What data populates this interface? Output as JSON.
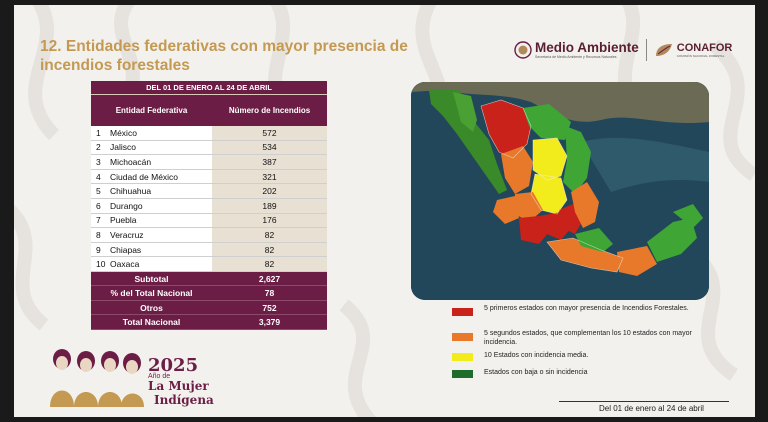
{
  "slide": {
    "title": "12. Entidades federativas con mayor presencia de incendios forestales",
    "logo_primary": "Medio Ambiente",
    "logo_primary_sub": "Secretaría de Medio Ambiente y Recursos Naturales",
    "logo_secondary": "CONAFOR",
    "logo_secondary_sub": "COMISIÓN NACIONAL FORESTAL"
  },
  "table": {
    "date_range": "DEL 01 DE ENERO AL 24 DE ABRIL",
    "col_state": "Entidad Federativa",
    "col_count": "Número de Incendios",
    "rows": [
      {
        "n": "1",
        "state": "México",
        "count": "572"
      },
      {
        "n": "2",
        "state": "Jalisco",
        "count": "534"
      },
      {
        "n": "3",
        "state": "Michoacán",
        "count": "387"
      },
      {
        "n": "4",
        "state": "Ciudad de México",
        "count": "321"
      },
      {
        "n": "5",
        "state": "Chihuahua",
        "count": "202"
      },
      {
        "n": "6",
        "state": "Durango",
        "count": "189"
      },
      {
        "n": "7",
        "state": "Puebla",
        "count": "176"
      },
      {
        "n": "8",
        "state": "Veracruz",
        "count": "82"
      },
      {
        "n": "9",
        "state": "Chiapas",
        "count": "82"
      },
      {
        "n": "10",
        "state": "Oaxaca",
        "count": "82"
      }
    ],
    "summary": [
      {
        "label": "Subtotal",
        "value": "2,627"
      },
      {
        "label": "% del Total Nacional",
        "value": "78"
      },
      {
        "label": "Otros",
        "value": "752"
      },
      {
        "label": "Total Nacional",
        "value": "3,379"
      }
    ]
  },
  "legend": [
    {
      "color": "#c8221a",
      "text": "5 primeros estados con mayor presencia de Incendios Forestales."
    },
    {
      "color": "#e8782a",
      "text": "5 segundos estados, que complementan los 10 estados con mayor incidencia."
    },
    {
      "color": "#f3ec1c",
      "text": "10 Estados con incidencia media."
    },
    {
      "color": "#1f6d2b",
      "text": "Estados con baja o sin incidencia"
    }
  ],
  "brand": {
    "year": "2025",
    "year_of": "Año de",
    "line1": "La Mujer",
    "line2": "Indígena"
  },
  "footer": {
    "date": "Del 01 de enero al 24 de abril"
  },
  "colors": {
    "accent": "#6c1d45",
    "title": "#c49a52",
    "highlight_cell": "#e8e0d3"
  }
}
